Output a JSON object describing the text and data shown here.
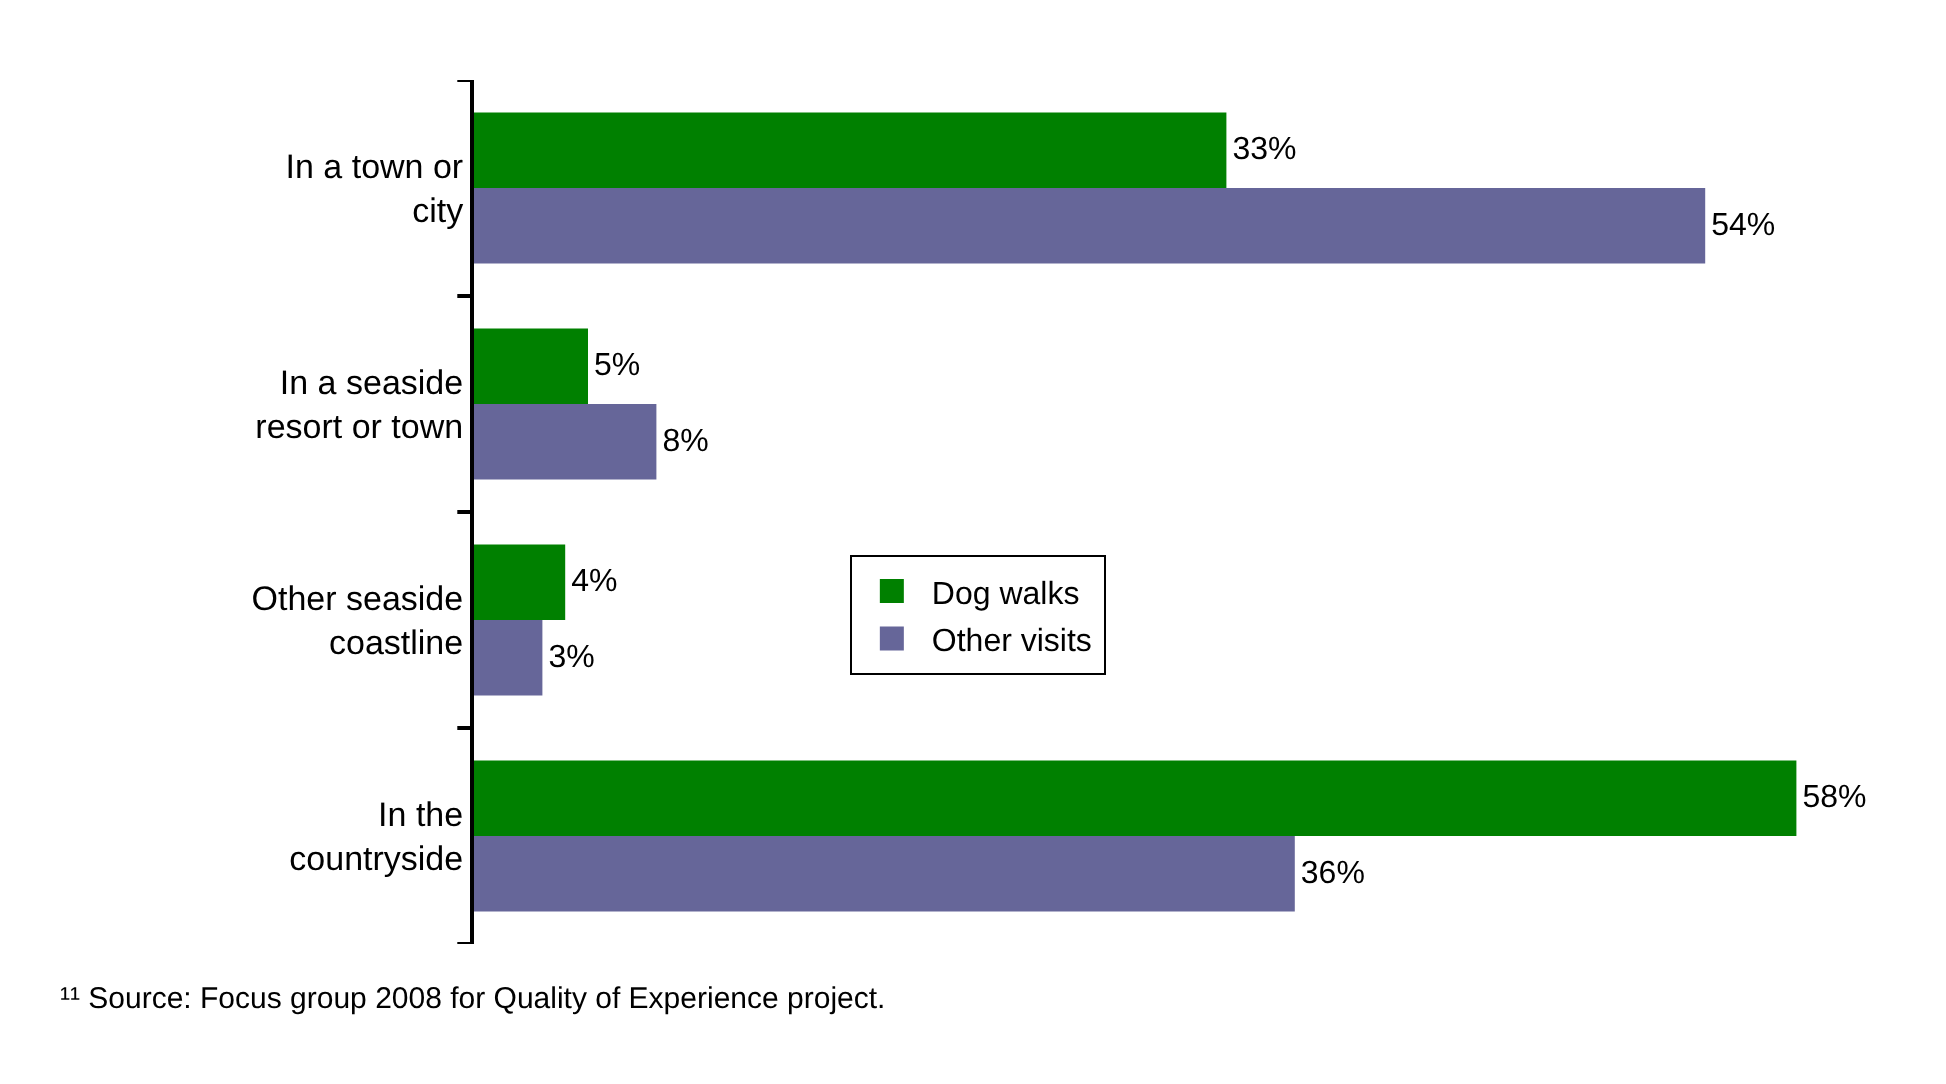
{
  "chart_data": {
    "type": "bar",
    "orientation": "horizontal",
    "categories": [
      "In a town or city",
      "In a seaside resort or town",
      "Other seaside coastline",
      "In the countryside"
    ],
    "series": [
      {
        "name": "Dog walks",
        "color": "#008000",
        "values": [
          33,
          5,
          4,
          58
        ],
        "value_labels": [
          "33%",
          "5%",
          "4%",
          "58%"
        ]
      },
      {
        "name": "Other visits",
        "color": "#666699",
        "values": [
          54,
          8,
          3,
          36
        ],
        "value_labels": [
          "54%",
          "8%",
          "3%",
          "36%"
        ]
      }
    ],
    "legend": "bottom left",
    "grid": false,
    "tick_labels": "y",
    "annotations": [
      "¹¹ Source: Focus group 2008 for Quality of Experience project."
    ]
  }
}
